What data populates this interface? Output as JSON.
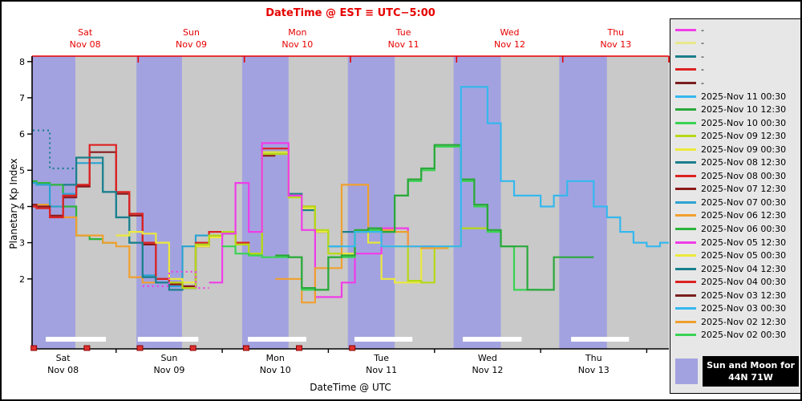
{
  "chart_data": {
    "type": "line",
    "title_top_est": "DateTime @ EST ≡ UTC−5:00",
    "xlabel": "DateTime @ UTC",
    "ylabel": "Planetary Kp Index",
    "y_ticks": [
      2,
      3,
      4,
      5,
      6,
      7,
      8
    ],
    "ylim": [
      0.07,
      8.15
    ],
    "x_hours_range": [
      0,
      144
    ],
    "step_hours": 3,
    "days": [
      {
        "abbr": "Sat",
        "date": "Nov 08"
      },
      {
        "abbr": "Sun",
        "date": "Nov 09"
      },
      {
        "abbr": "Mon",
        "date": "Nov 10"
      },
      {
        "abbr": "Tue",
        "date": "Nov 11"
      },
      {
        "abbr": "Wed",
        "date": "Nov 12"
      },
      {
        "abbr": "Thu",
        "date": "Nov 13"
      }
    ],
    "night_bands_hours": [
      [
        0,
        9.8
      ],
      [
        23.6,
        33.9
      ],
      [
        47.5,
        58.0
      ],
      [
        71.4,
        82.0
      ],
      [
        95.3,
        106.0
      ],
      [
        119.2,
        130.0
      ]
    ],
    "moon_bars_hours": [
      [
        3.1,
        16.7
      ],
      [
        23.9,
        37.6
      ],
      [
        48.8,
        62.0
      ],
      [
        72.9,
        86.0
      ],
      [
        97.4,
        110.7
      ],
      [
        121.9,
        135.0
      ]
    ],
    "issue_markers_hours": [
      0.4,
      12.4,
      24.4,
      36.4,
      48.4,
      60.4,
      72.4
    ],
    "colors": {
      "night_band": "#a3a2e0",
      "day_band": "#c9c9c9",
      "axis_red": "#e60000",
      "moon_bar": "#ffffff",
      "marker_red": "#e03030"
    },
    "series": [
      {
        "label": "2025-Nov 06 00:30",
        "color": "#2db53c",
        "dash": false,
        "t0": -5,
        "values": [
          4.7,
          4.7,
          4.65,
          4.6,
          4.0,
          3.2,
          3.1,
          3.0
        ]
      },
      {
        "label": "2025-Nov 06 12:30",
        "color": "#f0a02e",
        "dash": false,
        "t0": -5,
        "values": [
          4.0,
          4.0,
          4.05,
          4.0,
          3.7,
          3.2,
          3.2,
          3.0,
          2.9,
          2.05,
          1.9,
          2.0
        ]
      },
      {
        "label": "2025-Nov 07 00:30",
        "color": "#2aa3d1",
        "dash": false,
        "t0": -5,
        "values": [
          4.65,
          4.65,
          4.6,
          4.0,
          4.35,
          5.2,
          5.2,
          4.4,
          3.7,
          3.0,
          2.1,
          1.9,
          1.8,
          2.9,
          3.2,
          3.2
        ]
      },
      {
        "label": "2025-Nov 07 12:30",
        "color": "#8b1a1a",
        "dash": false,
        "t0": -5,
        "values": [
          4.05,
          4.05,
          4.0,
          3.75,
          4.25,
          4.55,
          5.5,
          5.5,
          4.35,
          3.75,
          2.95,
          2.0,
          1.85,
          1.8,
          2.9,
          3.2,
          3.3,
          2.95,
          2.7,
          5.4
        ]
      },
      {
        "label": "2025-Nov 08 00:30",
        "color": "#dd2222",
        "dash": false,
        "t0": -5,
        "values": [
          4.0,
          4.0,
          3.95,
          3.7,
          4.3,
          4.6,
          5.7,
          5.7,
          4.4,
          3.8,
          3.0,
          2.0,
          1.9,
          1.75,
          3.0,
          3.3,
          3.3,
          3.0,
          2.7,
          5.6,
          5.6,
          4.3,
          4.0,
          3.3
        ]
      },
      {
        "label": "2025-Nov 08 12:30",
        "color": "#1b7f8c",
        "dash": true,
        "t0": -2,
        "values": [
          6.1,
          6.1,
          5.05,
          5.05
        ]
      },
      {
        "label": "2025-Nov 08 12:30",
        "color": "#1b7f8c",
        "dash": false,
        "t0": 7,
        "values": [
          4.6,
          5.35,
          5.35,
          4.4,
          3.7,
          3.0,
          2.05,
          1.9,
          1.7,
          1.75,
          2.95,
          3.2,
          3.25,
          2.95,
          2.7,
          5.5,
          5.5,
          4.35,
          3.9,
          3.3,
          2.9,
          3.3,
          3.3,
          3.0
        ]
      },
      {
        "label": "2025-Nov 09 00:30",
        "color": "#ece93c",
        "dash": false,
        "t0": 19,
        "values": [
          3.2,
          3.3,
          3.25,
          3.0,
          2.0,
          1.9,
          2.9,
          3.15,
          3.3,
          2.95,
          2.7,
          5.5,
          5.5,
          4.3,
          3.95,
          3.3,
          2.7,
          2.7,
          3.3,
          3.0,
          2.0,
          1.9,
          1.9,
          2.85
        ]
      },
      {
        "label": "2025-Nov 09 12:30",
        "color": "#b5d916",
        "dash": false,
        "t0": 31,
        "values": [
          1.9,
          1.75,
          2.95,
          3.2,
          3.3,
          2.95,
          2.7,
          5.45,
          5.45,
          4.25,
          4.0,
          3.35,
          2.7,
          2.65,
          3.35,
          3.3,
          2.9,
          2.9,
          1.95,
          1.9,
          2.85,
          2.9,
          3.4,
          3.4
        ]
      },
      {
        "label": "-",
        "color": "#f03ce8",
        "dash": true,
        "t0": 25,
        "values": [
          1.8,
          1.8,
          2.2,
          2.2,
          1.75
        ]
      },
      {
        "label": "-",
        "color": "#f03ce8",
        "dash": false,
        "t0": 40,
        "values": [
          1.9,
          3.25,
          4.65,
          3.3,
          5.75,
          5.75,
          4.3,
          3.35,
          1.5,
          1.5,
          1.9,
          2.7,
          2.7,
          3.4,
          3.4,
          2.9,
          2.9
        ]
      },
      {
        "label": "-",
        "color": "#f0a02e",
        "dash": false,
        "t0": 55,
        "values": [
          2.0,
          2.0,
          1.35,
          2.3,
          2.3,
          4.6,
          4.6,
          3.4,
          3.35,
          3.3,
          2.9,
          2.85,
          2.85
        ]
      },
      {
        "label": "2025-Nov 10 00:30",
        "color": "#39d353",
        "dash": false,
        "t0": 43,
        "values": [
          2.9,
          2.7,
          2.65,
          2.6,
          2.6,
          2.6,
          1.7,
          1.7,
          2.6,
          2.6,
          3.3,
          3.35,
          3.3,
          4.3,
          4.7,
          5.0,
          5.65,
          5.65,
          4.7,
          4.0,
          3.3,
          2.9,
          1.7,
          1.7
        ]
      },
      {
        "label": "2025-Nov 10 12:30",
        "color": "#2aa83a",
        "dash": false,
        "t0": 55,
        "values": [
          2.65,
          2.6,
          1.75,
          1.7,
          2.6,
          2.65,
          3.35,
          3.4,
          3.3,
          4.3,
          4.75,
          5.05,
          5.7,
          5.7,
          4.75,
          4.05,
          3.35,
          2.9,
          2.9,
          1.7,
          1.7,
          2.6,
          2.6,
          2.6
        ]
      },
      {
        "label": "2025-Nov 11 00:30",
        "color": "#35b8ee",
        "dash": false,
        "t0": 67,
        "values": [
          2.9,
          2.9,
          3.3,
          3.3,
          2.9,
          2.9,
          2.9,
          2.9,
          2.9,
          2.9,
          7.3,
          7.3,
          6.3,
          4.7,
          4.3,
          4.3,
          4.0,
          4.3,
          4.7,
          4.7,
          4.0,
          3.7,
          3.3,
          3.0,
          2.9,
          3.0
        ]
      }
    ],
    "legend": {
      "entries": [
        {
          "label": "-",
          "color": "#f03ce8"
        },
        {
          "label": "-",
          "color": "#e8e88a"
        },
        {
          "label": "-",
          "color": "#1b7f8c"
        },
        {
          "label": "-",
          "color": "#dd2222"
        },
        {
          "label": "-",
          "color": "#7a1f1f"
        },
        {
          "label": "2025-Nov 11 00:30",
          "color": "#35b8ee"
        },
        {
          "label": "2025-Nov 10 12:30",
          "color": "#2aa83a"
        },
        {
          "label": "2025-Nov 10 00:30",
          "color": "#39d353"
        },
        {
          "label": "2025-Nov 09 12:30",
          "color": "#b5d916"
        },
        {
          "label": "2025-Nov 09 00:30",
          "color": "#ece93c"
        },
        {
          "label": "2025-Nov 08 12:30",
          "color": "#1b7f8c"
        },
        {
          "label": "2025-Nov 08 00:30",
          "color": "#dd2222"
        },
        {
          "label": "2025-Nov 07 12:30",
          "color": "#8b1a1a"
        },
        {
          "label": "2025-Nov 07 00:30",
          "color": "#2aa3d1"
        },
        {
          "label": "2025-Nov 06 12:30",
          "color": "#f0a02e"
        },
        {
          "label": "2025-Nov 06 00:30",
          "color": "#2db53c"
        },
        {
          "label": "2025-Nov 05 12:30",
          "color": "#f03ce8"
        },
        {
          "label": "2025-Nov 05 00:30",
          "color": "#ece93c"
        },
        {
          "label": "2025-Nov 04 12:30",
          "color": "#1b7f8c"
        },
        {
          "label": "2025-Nov 04 00:30",
          "color": "#dd2222"
        },
        {
          "label": "2025-Nov 03 12:30",
          "color": "#7a1f1f"
        },
        {
          "label": "2025-Nov 03 00:30",
          "color": "#35b8ee"
        },
        {
          "label": "2025-Nov 02 12:30",
          "color": "#f0a02e"
        },
        {
          "label": "2025-Nov 02 00:30",
          "color": "#39d353"
        }
      ],
      "sun_moon_line1": "Sun and Moon for",
      "sun_moon_line2": "44N 71W"
    }
  }
}
